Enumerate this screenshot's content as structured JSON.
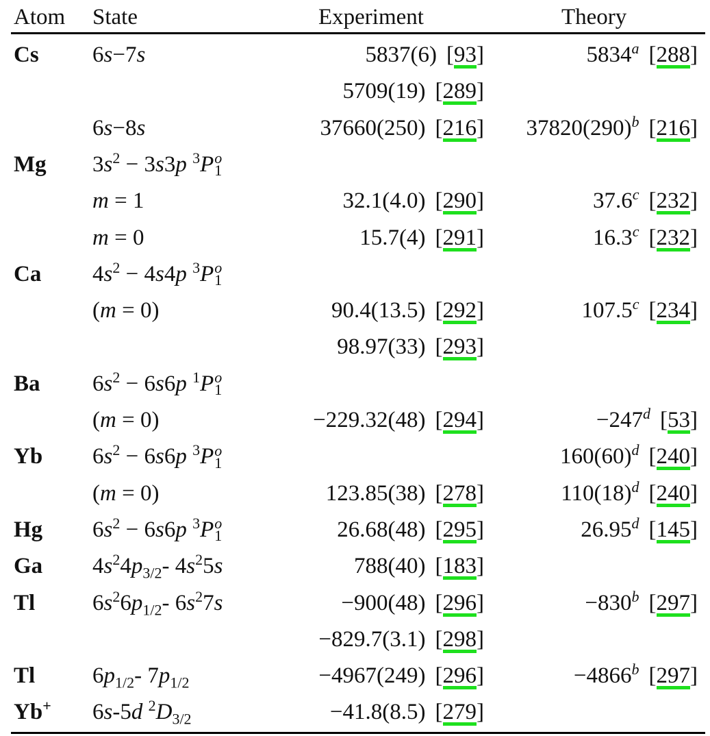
{
  "header": {
    "atom": "Atom",
    "state": "State",
    "experiment": "Experiment",
    "theory": "Theory"
  },
  "colors": {
    "ref_underline": "#1ee01e"
  },
  "rows": [
    {
      "atom": "Cs",
      "state": [
        [
          "6",
          "r"
        ],
        [
          "s",
          "i"
        ],
        [
          "−7",
          "r"
        ],
        [
          "s",
          "i"
        ]
      ],
      "exp": {
        "value": "5837(6)",
        "ref": "93"
      },
      "th": {
        "value": "5834",
        "note": "a",
        "ref": "288"
      }
    },
    {
      "atom": "",
      "state": [],
      "exp": {
        "value": "5709(19)",
        "ref": "289"
      }
    },
    {
      "atom": "",
      "state": [
        [
          "6",
          "r"
        ],
        [
          "s",
          "i"
        ],
        [
          "−8",
          "r"
        ],
        [
          "s",
          "i"
        ]
      ],
      "exp": {
        "value": "37660(250)",
        "ref": "216"
      },
      "th": {
        "value": "37820(290)",
        "note": "b",
        "ref": "216"
      }
    },
    {
      "atom": "Mg",
      "state": [
        [
          "3",
          "r"
        ],
        [
          "s",
          "i"
        ],
        [
          "2",
          "sup"
        ],
        [
          " − 3",
          "r"
        ],
        [
          "s",
          "i"
        ],
        [
          "3",
          "r"
        ],
        [
          "p",
          "i"
        ],
        [
          " ",
          "r"
        ],
        [
          "3",
          "sup"
        ],
        [
          "P",
          "i"
        ],
        [
          "o|1",
          "stack"
        ]
      ]
    },
    {
      "atom": "",
      "state": [
        [
          "m",
          "i"
        ],
        [
          " = 1",
          "r"
        ]
      ],
      "exp": {
        "value": "32.1(4.0)",
        "ref": "290"
      },
      "th": {
        "value": "37.6",
        "note": "c",
        "ref": "232"
      }
    },
    {
      "atom": "",
      "state": [
        [
          "m",
          "i"
        ],
        [
          " = 0",
          "r"
        ]
      ],
      "exp": {
        "value": "15.7(4)",
        "ref": "291"
      },
      "th": {
        "value": "16.3",
        "note": "c",
        "ref": "232"
      }
    },
    {
      "atom": "Ca",
      "state": [
        [
          "4",
          "r"
        ],
        [
          "s",
          "i"
        ],
        [
          "2",
          "sup"
        ],
        [
          " − 4",
          "r"
        ],
        [
          "s",
          "i"
        ],
        [
          "4",
          "r"
        ],
        [
          "p",
          "i"
        ],
        [
          " ",
          "r"
        ],
        [
          "3",
          "sup"
        ],
        [
          "P",
          "i"
        ],
        [
          "o|1",
          "stack"
        ]
      ]
    },
    {
      "atom": "",
      "state": [
        [
          "(",
          "r"
        ],
        [
          "m",
          "i"
        ],
        [
          " = 0)",
          "r"
        ]
      ],
      "exp": {
        "value": "90.4(13.5)",
        "ref": "292"
      },
      "th": {
        "value": "107.5",
        "note": "c",
        "ref": "234"
      }
    },
    {
      "atom": "",
      "state": [],
      "exp": {
        "value": "98.97(33)",
        "ref": "293"
      }
    },
    {
      "atom": "Ba",
      "state": [
        [
          "6",
          "r"
        ],
        [
          "s",
          "i"
        ],
        [
          "2",
          "sup"
        ],
        [
          " − 6",
          "r"
        ],
        [
          "s",
          "i"
        ],
        [
          "6",
          "r"
        ],
        [
          "p",
          "i"
        ],
        [
          " ",
          "r"
        ],
        [
          "1",
          "sup"
        ],
        [
          "P",
          "i"
        ],
        [
          "o|1",
          "stack"
        ]
      ]
    },
    {
      "atom": "",
      "state": [
        [
          "(",
          "r"
        ],
        [
          "m",
          "i"
        ],
        [
          " = 0)",
          "r"
        ]
      ],
      "exp": {
        "value": "−229.32(48)",
        "ref": "294"
      },
      "th": {
        "value": "−247",
        "note": "d",
        "ref": "53"
      }
    },
    {
      "atom": "Yb",
      "state": [
        [
          "6",
          "r"
        ],
        [
          "s",
          "i"
        ],
        [
          "2",
          "sup"
        ],
        [
          " − 6",
          "r"
        ],
        [
          "s",
          "i"
        ],
        [
          "6",
          "r"
        ],
        [
          "p",
          "i"
        ],
        [
          " ",
          "r"
        ],
        [
          "3",
          "sup"
        ],
        [
          "P",
          "i"
        ],
        [
          "o|1",
          "stack"
        ]
      ],
      "th": {
        "value": "160(60)",
        "note": "d",
        "ref": "240"
      }
    },
    {
      "atom": "",
      "state": [
        [
          "(",
          "r"
        ],
        [
          "m",
          "i"
        ],
        [
          " = 0)",
          "r"
        ]
      ],
      "exp": {
        "value": "123.85(38)",
        "ref": "278"
      },
      "th": {
        "value": "110(18)",
        "note": "d",
        "ref": "240"
      }
    },
    {
      "atom": "Hg",
      "state": [
        [
          "6",
          "r"
        ],
        [
          "s",
          "i"
        ],
        [
          "2",
          "sup"
        ],
        [
          " − 6",
          "r"
        ],
        [
          "s",
          "i"
        ],
        [
          "6",
          "r"
        ],
        [
          "p",
          "i"
        ],
        [
          " ",
          "r"
        ],
        [
          "3",
          "sup"
        ],
        [
          "P",
          "i"
        ],
        [
          "o|1",
          "stack"
        ]
      ],
      "exp": {
        "value": "26.68(48)",
        "ref": "295"
      },
      "th": {
        "value": "26.95",
        "note": "d",
        "ref": "145"
      }
    },
    {
      "atom": "Ga",
      "state": [
        [
          "4",
          "r"
        ],
        [
          "s",
          "i"
        ],
        [
          "2",
          "sup"
        ],
        [
          "4",
          "r"
        ],
        [
          "p",
          "i"
        ],
        [
          "3/2",
          "sub"
        ],
        [
          "- 4",
          "r"
        ],
        [
          "s",
          "i"
        ],
        [
          "2",
          "sup"
        ],
        [
          "5",
          "r"
        ],
        [
          "s",
          "i"
        ]
      ],
      "exp": {
        "value": "788(40)",
        "ref": "183"
      }
    },
    {
      "atom": "Tl",
      "state": [
        [
          "6",
          "r"
        ],
        [
          "s",
          "i"
        ],
        [
          "2",
          "sup"
        ],
        [
          "6",
          "r"
        ],
        [
          "p",
          "i"
        ],
        [
          "1/2",
          "sub"
        ],
        [
          "- 6",
          "r"
        ],
        [
          "s",
          "i"
        ],
        [
          "2",
          "sup"
        ],
        [
          "7",
          "r"
        ],
        [
          "s",
          "i"
        ]
      ],
      "exp": {
        "value": "−900(48)",
        "ref": "296"
      },
      "th": {
        "value": "−830",
        "note": "b",
        "ref": "297"
      }
    },
    {
      "atom": "",
      "state": [],
      "exp": {
        "value": "−829.7(3.1)",
        "ref": "298"
      }
    },
    {
      "atom": "Tl",
      "state": [
        [
          "6",
          "r"
        ],
        [
          "p",
          "i"
        ],
        [
          "1/2",
          "sub"
        ],
        [
          "- 7",
          "r"
        ],
        [
          "p",
          "i"
        ],
        [
          "1/2",
          "sub"
        ]
      ],
      "exp": {
        "value": "−4967(249)",
        "ref": "296"
      },
      "th": {
        "value": "−4866",
        "note": "b",
        "ref": "297"
      }
    },
    {
      "atom": "Yb",
      "atom_sup": "+",
      "state": [
        [
          "6",
          "r"
        ],
        [
          "s",
          "i"
        ],
        [
          "-5",
          "r"
        ],
        [
          "d",
          "i"
        ],
        [
          " ",
          "r"
        ],
        [
          "2",
          "sup"
        ],
        [
          "D",
          "i"
        ],
        [
          "3/2",
          "sub"
        ]
      ],
      "exp": {
        "value": "−41.8(8.5)",
        "ref": "279"
      }
    }
  ]
}
